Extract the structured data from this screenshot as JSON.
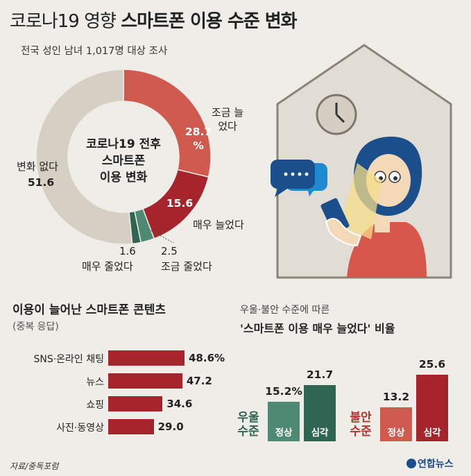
{
  "title": {
    "part1": "코로나19 영향",
    "part2": "스마트폰 이용 수준 변화"
  },
  "subtitle": "전국 성인 남녀 1,017명 대상 조사",
  "chart_data": [
    {
      "type": "pie",
      "center_label": [
        "코로나19 전후",
        "스마트폰",
        "이용 변화"
      ],
      "slices": [
        {
          "label": "조금 늘었다",
          "value": 28.7,
          "display": "28.7 %",
          "color": "#d05a4e"
        },
        {
          "label": "매우 늘었다",
          "value": 15.6,
          "display": "15.6",
          "color": "#a6252c"
        },
        {
          "label": "조금 줄었다",
          "value": 2.5,
          "display": "2.5",
          "color": "#4e8a73"
        },
        {
          "label": "매우 줄었다",
          "value": 1.6,
          "display": "1.6",
          "color": "#2f6553"
        },
        {
          "label": "변화 없다",
          "value": 51.6,
          "display": "51.6",
          "color": "#d6cfc3"
        }
      ]
    },
    {
      "type": "bar",
      "orientation": "horizontal",
      "title": "이용이 늘어난 스마트폰 콘텐츠",
      "subtitle": "(중복 응답)",
      "categories": [
        "SNS·온라인 채팅",
        "뉴스",
        "쇼핑",
        "사진·동영상"
      ],
      "values": [
        48.6,
        47.2,
        34.6,
        29.0
      ],
      "display": [
        "48.6%",
        "47.2",
        "34.6",
        "29.0"
      ],
      "color": "#a6252c"
    },
    {
      "type": "bar",
      "title_line1": "우울·불안 수준에 따른",
      "title_line2": "'스마트폰 이용 매우 늘었다' 비율",
      "groups": [
        {
          "name": "우울 수준",
          "name_lines": [
            "우울",
            "수준"
          ],
          "color": "#2f6553",
          "categories": [
            "정상",
            "심각"
          ],
          "values": [
            15.2,
            21.7
          ],
          "display": [
            "15.2%",
            "21.7"
          ],
          "colors": [
            "#4e8a73",
            "#2f6553"
          ]
        },
        {
          "name": "불안 수준",
          "name_lines": [
            "불안",
            "수준"
          ],
          "color": "#b1342f",
          "categories": [
            "정상",
            "심각"
          ],
          "values": [
            13.2,
            25.6
          ],
          "display": [
            "13.2",
            "25.6"
          ],
          "colors": [
            "#d05a4e",
            "#a6252c"
          ]
        }
      ]
    }
  ],
  "source": "자료/중독포럼",
  "logo": "연합뉴스",
  "icons": [
    "house-icon",
    "clock-icon",
    "speech-bubble-icon",
    "person-with-phone-icon"
  ]
}
